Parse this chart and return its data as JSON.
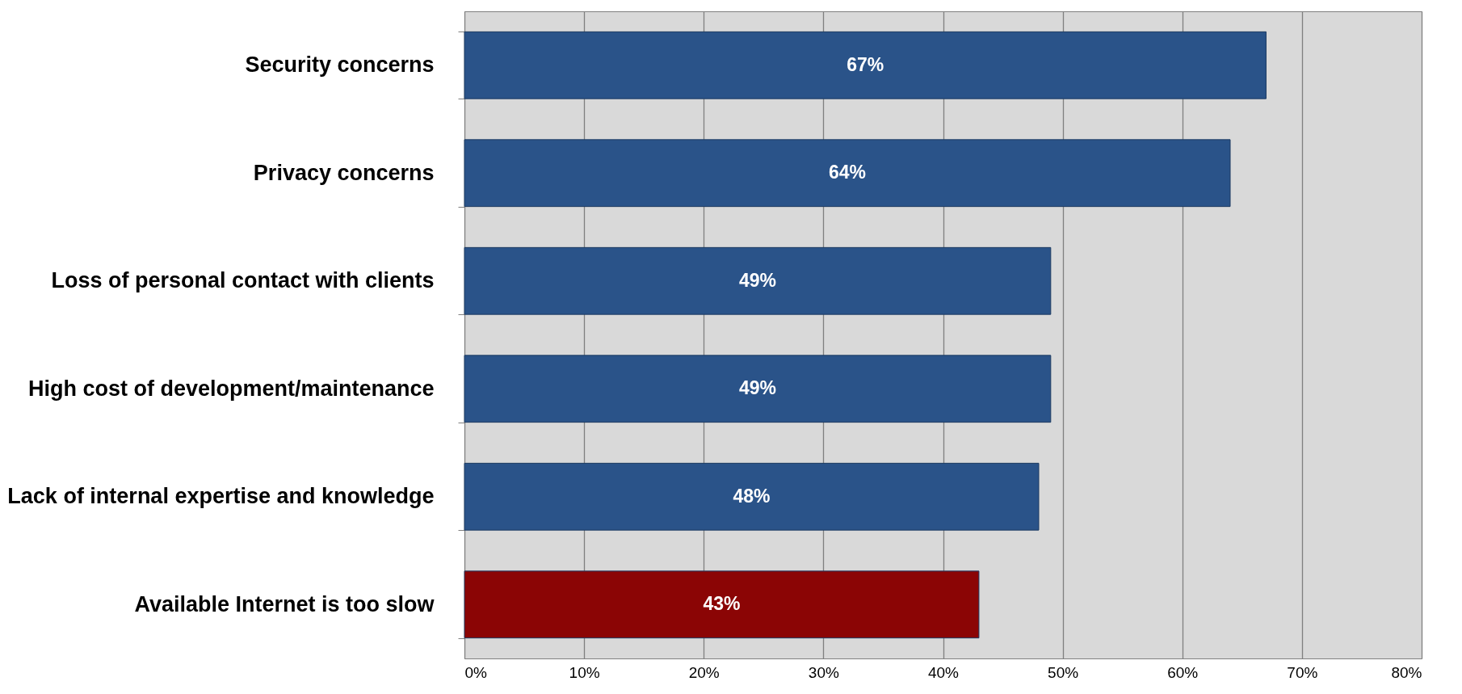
{
  "chart_data": {
    "type": "bar",
    "orientation": "horizontal",
    "categories": [
      "Security concerns",
      "Privacy concerns",
      "Loss of personal contact with clients",
      "High cost of development/maintenance",
      "Lack of internal expertise and knowledge",
      "Available Internet is too slow"
    ],
    "values": [
      67,
      64,
      49,
      49,
      48,
      43
    ],
    "colors": [
      "#2a5389",
      "#2a5389",
      "#2a5389",
      "#2a5389",
      "#2a5389",
      "#8b0505"
    ],
    "xlim": [
      0,
      80
    ],
    "xticks": [
      {
        "value": 0,
        "label": "0%"
      },
      {
        "value": 10,
        "label": "10%"
      },
      {
        "value": 20,
        "label": "20%"
      },
      {
        "value": 30,
        "label": "30%"
      },
      {
        "value": 40,
        "label": "40%"
      },
      {
        "value": 50,
        "label": "50%"
      },
      {
        "value": 60,
        "label": "60%"
      },
      {
        "value": 70,
        "label": "70%"
      },
      {
        "value": 80,
        "label": "80%"
      }
    ],
    "value_labels": [
      "67%",
      "64%",
      "49%",
      "49%",
      "48%",
      "43%"
    ],
    "grid": "x",
    "legend": false
  }
}
